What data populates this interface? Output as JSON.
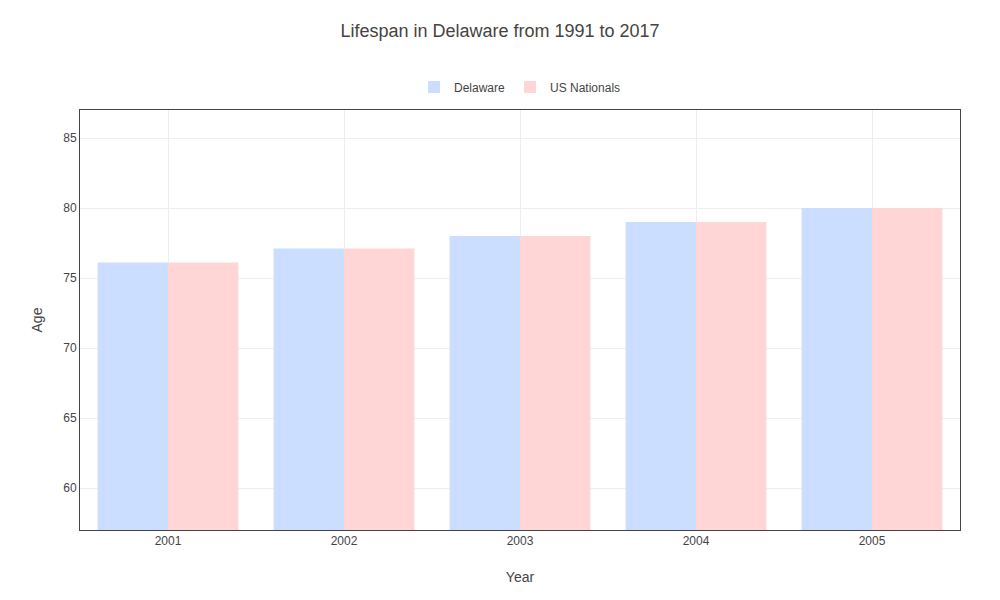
{
  "chart_data": {
    "type": "bar",
    "title": "Lifespan in Delaware from 1991 to 2017",
    "xlabel": "Year",
    "ylabel": "Age",
    "categories": [
      "2001",
      "2002",
      "2003",
      "2004",
      "2005"
    ],
    "series": [
      {
        "name": "Delaware",
        "color": "#ccdeff",
        "values": [
          76.1,
          77.1,
          78.0,
          79.0,
          80.0
        ]
      },
      {
        "name": "US Nationals",
        "color": "#ffd6d6",
        "values": [
          76.1,
          77.1,
          78.0,
          79.0,
          80.0
        ]
      }
    ],
    "ylim": [
      57,
      87
    ],
    "yticks": [
      60,
      65,
      70,
      75,
      80,
      85
    ],
    "grid": true,
    "legend": "top"
  }
}
